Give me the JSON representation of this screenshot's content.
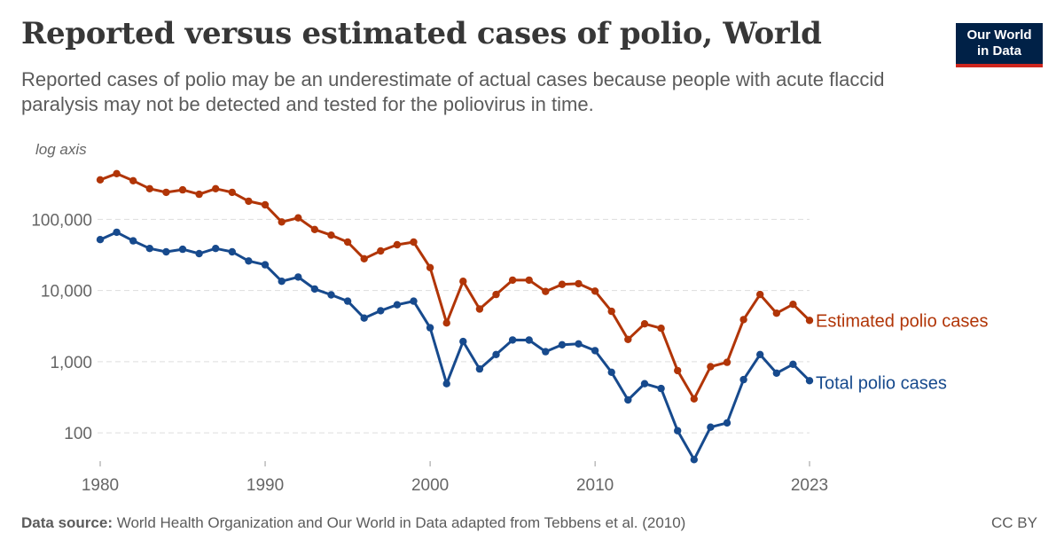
{
  "header": {
    "title": "Reported versus estimated cases of polio, World",
    "subtitle": "Reported cases of polio may be an underestimate of actual cases because people with acute flaccid paralysis may not be detected and tested for the poliovirus in time."
  },
  "logo": {
    "line1": "Our World",
    "line2": "in Data",
    "bg_color": "#002147",
    "accent_color": "#ce261e"
  },
  "footer": {
    "source_label": "Data source:",
    "source_text": " World Health Organization and Our World in Data adapted from Tebbens et al. (2010)",
    "license": "CC BY"
  },
  "chart_data": {
    "type": "line",
    "y_scale": "log",
    "axis_note": "log axis",
    "xlim": [
      1980,
      2023
    ],
    "ylim": [
      40,
      450000
    ],
    "x_ticks": [
      1980,
      1990,
      2000,
      2010,
      2023
    ],
    "x_tick_labels": [
      "1980",
      "1990",
      "2000",
      "2010",
      "2023"
    ],
    "y_ticks": [
      100,
      1000,
      10000,
      100000
    ],
    "y_tick_labels": [
      "100",
      "1,000",
      "10,000",
      "100,000"
    ],
    "grid": "horizontal dashed",
    "legend": "inline labels at line ends",
    "x": [
      1980,
      1981,
      1982,
      1983,
      1984,
      1985,
      1986,
      1987,
      1988,
      1989,
      1990,
      1991,
      1992,
      1993,
      1994,
      1995,
      1996,
      1997,
      1998,
      1999,
      2000,
      2001,
      2002,
      2003,
      2004,
      2005,
      2006,
      2007,
      2008,
      2009,
      2010,
      2011,
      2012,
      2013,
      2014,
      2015,
      2016,
      2017,
      2018,
      2019,
      2020,
      2021,
      2022,
      2023
    ],
    "series": [
      {
        "name": "Estimated polio cases",
        "color": "#b13507",
        "values": [
          360000,
          440000,
          350000,
          270000,
          240000,
          260000,
          225000,
          270000,
          240000,
          180000,
          160000,
          92000,
          105000,
          72000,
          60000,
          48000,
          28000,
          36000,
          44000,
          48000,
          21000,
          3500,
          13500,
          5500,
          8800,
          14000,
          14000,
          9700,
          12200,
          12500,
          9800,
          5100,
          2050,
          3400,
          2950,
          750,
          300,
          850,
          980,
          3900,
          8800,
          4800,
          6400,
          3800
        ]
      },
      {
        "name": "Total polio cases",
        "color": "#174a8d",
        "values": [
          52000,
          66000,
          50000,
          39000,
          35000,
          38000,
          33000,
          39000,
          35000,
          26000,
          23000,
          13500,
          15500,
          10500,
          8700,
          7100,
          4100,
          5200,
          6300,
          7100,
          3000,
          490,
          1920,
          790,
          1260,
          2020,
          2010,
          1380,
          1730,
          1780,
          1430,
          710,
          290,
          490,
          420,
          107,
          42,
          120,
          138,
          560,
          1260,
          690,
          920,
          540
        ]
      }
    ]
  }
}
